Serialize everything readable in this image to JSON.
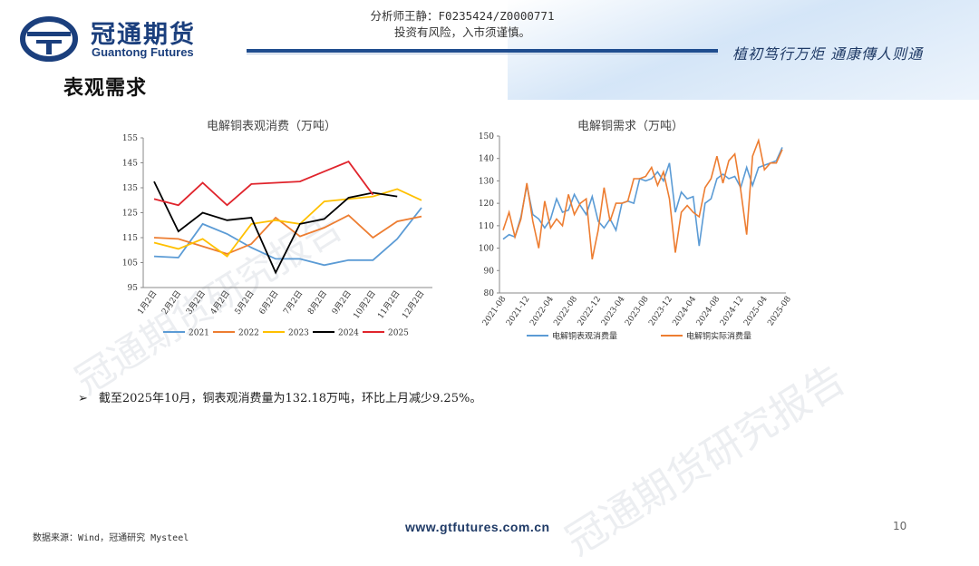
{
  "header": {
    "brand_cn": "冠通期货",
    "brand_en": "Guantong Futures",
    "analyst": "分析师王静：F0235424/Z0000771",
    "risk_notice": "投资有风险，入市须谨慎。",
    "slogan": "植初笃行万炬  通康傳人则通"
  },
  "page_title": "表观需求",
  "watermark": "冠通期货研究报告",
  "bullet_text": "截至2025年10月，铜表观消费量为132.18万吨，环比上月减少9.25%。",
  "footer": {
    "source": "数据来源：Wind，冠通研究 Mysteel",
    "website": "www.gtfutures.com.cn",
    "page_number": "10"
  },
  "colors": {
    "brand": "#1b3f7d",
    "s2021": "#5b9bd5",
    "s2022": "#ed7d31",
    "s2023": "#ffc000",
    "s2024": "#000000",
    "s2025": "#e0242c"
  },
  "chart_data": [
    {
      "type": "line",
      "title": "电解铜表观消费（万吨）",
      "categories": [
        "1月2日",
        "2月2日",
        "3月2日",
        "4月2日",
        "5月2日",
        "6月2日",
        "7月2日",
        "8月2日",
        "9月2日",
        "10月2日",
        "11月2日",
        "12月2日"
      ],
      "ylim": [
        95,
        155
      ],
      "yticks": [
        95,
        105,
        115,
        125,
        135,
        145,
        155
      ],
      "legend_position": "bottom",
      "series": [
        {
          "name": "2021",
          "color": "#5b9bd5",
          "values": [
            107.5,
            107,
            120.5,
            116.5,
            111,
            106.5,
            106.5,
            104,
            106,
            106,
            114.5,
            127
          ]
        },
        {
          "name": "2022",
          "color": "#ed7d31",
          "values": [
            115,
            114.5,
            111.5,
            108.5,
            112.5,
            123,
            115.5,
            119,
            124,
            115,
            121.5,
            123.5
          ]
        },
        {
          "name": "2023",
          "color": "#ffc000",
          "values": [
            113,
            110.5,
            114.5,
            107.5,
            120.5,
            122,
            120.5,
            129.5,
            130.5,
            131.5,
            134.5,
            130
          ]
        },
        {
          "name": "2024",
          "color": "#000000",
          "values": [
            137.5,
            117.5,
            125,
            122,
            123,
            101,
            120.5,
            122.5,
            131,
            133,
            131.5,
            null
          ]
        },
        {
          "name": "2025",
          "color": "#e0242c",
          "values": [
            130.5,
            128,
            137,
            128,
            136.5,
            137,
            137.5,
            141.5,
            145.5,
            132.2,
            null,
            null
          ]
        }
      ]
    },
    {
      "type": "line",
      "title": "电解铜需求（万吨）",
      "xticks": [
        "2021-08",
        "2021-12",
        "2022-04",
        "2022-08",
        "2022-12",
        "2023-04",
        "2023-08",
        "2023-12",
        "2024-04",
        "2024-08",
        "2024-12",
        "2025-04",
        "2025-08"
      ],
      "ylim": [
        80,
        150
      ],
      "yticks": [
        80,
        90,
        100,
        110,
        120,
        130,
        140,
        150
      ],
      "legend_position": "bottom",
      "series": [
        {
          "name": "电解铜表观消费量",
          "color": "#5b9bd5",
          "values": [
            104,
            106,
            105,
            114,
            128,
            115,
            113,
            109,
            113,
            122,
            116,
            117,
            124,
            119,
            115,
            123,
            112,
            109,
            113,
            108,
            120,
            121,
            120,
            131,
            130,
            131,
            134,
            130,
            138,
            116,
            125,
            122,
            123,
            101,
            120,
            122,
            131,
            133,
            131,
            132,
            127,
            136,
            128,
            136,
            137,
            138,
            139,
            145
          ]
        },
        {
          "name": "电解铜实际消费量",
          "color": "#ed7d31",
          "values": [
            108,
            116,
            105,
            113,
            129,
            112,
            100,
            121,
            109,
            113,
            110,
            124,
            115,
            120,
            122,
            95,
            108,
            127,
            112,
            120,
            120,
            121,
            131,
            131,
            132,
            136,
            128,
            134,
            122,
            98,
            116,
            119,
            116,
            114,
            127,
            131,
            141,
            129,
            139,
            142,
            126,
            106,
            141,
            148,
            135,
            138,
            138,
            144
          ]
        }
      ]
    }
  ]
}
